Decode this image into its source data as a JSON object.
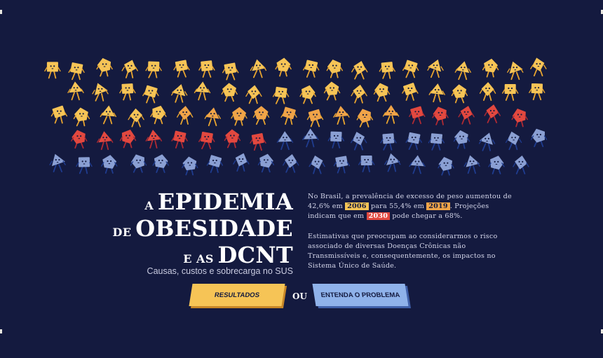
{
  "hero": {
    "title_line1_small": "A",
    "title_line1_big": "EPIDEMIA",
    "title_line2_small": "DE",
    "title_line2_big": "OBESIDADE",
    "title_line3_small": "E AS",
    "title_line3_big": "DCNT",
    "subtitle": "Causas, custos e sobrecarga no SUS"
  },
  "intro": {
    "p1_part1": "No Brasil, a prevalência de excesso de peso aumentou de 42,6% em",
    "year_2006": "2006",
    "p1_part2": "para 55,4% em",
    "year_2019": "2019",
    "p1_part3": ". Projeções indicam que em",
    "year_2030": "2030",
    "p1_part4": "pode chegar a 68%.",
    "p2": "Estimativas que preocupam ao considerarmos o risco associado de diversas Doenças Crônicas não Transmissíveis e, consequentemente, os impactos no Sistema Único de Saúde."
  },
  "actions": {
    "results_label": "RESULTADOS",
    "or_label": "OU",
    "problem_label": "ENTENDA O PROBLEMA"
  },
  "illustration": {
    "icon": "walking-shape-figures-icon",
    "colors": {
      "background": "#141a3f",
      "yellow": "#f6c456",
      "orange": "#f0a448",
      "red": "#e2483f",
      "blue": "#8a9fd3",
      "legs_yellow": "#e8a42f",
      "legs_red": "#b02a33",
      "legs_blue": "#1f3c8f"
    }
  }
}
